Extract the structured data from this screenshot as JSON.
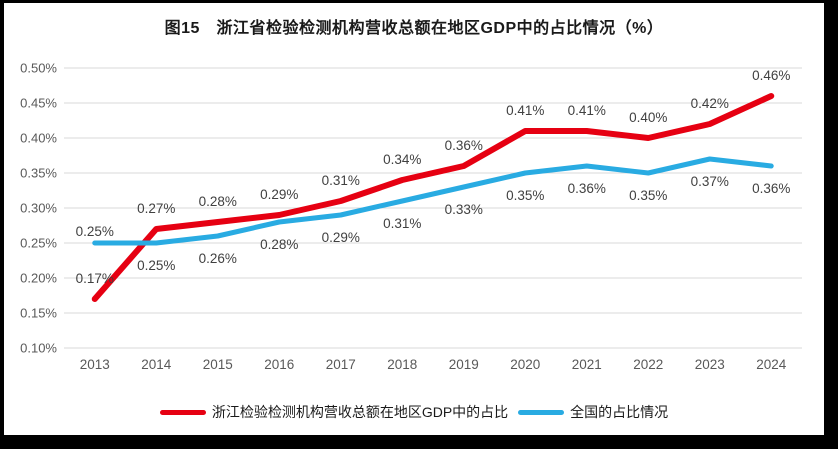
{
  "frame": {
    "border_color": "#000000",
    "background": "#ffffff"
  },
  "chart_data": {
    "type": "line",
    "title": "图15　浙江省检验检测机构营收总额在地区GDP中的占比情况（%）",
    "categories": [
      "2013",
      "2014",
      "2015",
      "2016",
      "2017",
      "2018",
      "2019",
      "2020",
      "2021",
      "2022",
      "2023",
      "2024"
    ],
    "series": [
      {
        "name": "浙江检验检测机构营收总额在地区GDP中的占比",
        "color": "#e60012",
        "stroke_width": 6,
        "label_position": "above",
        "values": [
          0.17,
          0.27,
          0.28,
          0.29,
          0.31,
          0.34,
          0.36,
          0.41,
          0.41,
          0.4,
          0.42,
          0.46
        ],
        "labels": [
          "0.17%",
          "0.27%",
          "0.28%",
          "0.29%",
          "0.31%",
          "0.34%",
          "0.36%",
          "0.41%",
          "0.41%",
          "0.40%",
          "0.42%",
          "0.46%"
        ]
      },
      {
        "name": "全国的占比情况",
        "color": "#29abe2",
        "stroke_width": 5,
        "label_position": "below",
        "label_position_overrides": {
          "0": "above"
        },
        "values": [
          0.25,
          0.25,
          0.26,
          0.28,
          0.29,
          0.31,
          0.33,
          0.35,
          0.36,
          0.35,
          0.37,
          0.36
        ],
        "labels": [
          "0.25%",
          "0.25%",
          "0.26%",
          "0.28%",
          "0.29%",
          "0.31%",
          "0.33%",
          "0.35%",
          "0.36%",
          "0.35%",
          "0.37%",
          "0.36%"
        ]
      }
    ],
    "xlabel": "",
    "ylabel": "",
    "y_axis": {
      "min": 0.1,
      "max": 0.5,
      "step": 0.05,
      "tick_labels": [
        "0.10%",
        "0.15%",
        "0.20%",
        "0.25%",
        "0.30%",
        "0.35%",
        "0.40%",
        "0.45%",
        "0.50%"
      ]
    },
    "grid": true,
    "gridline_color": "#d9d9d9",
    "axis_text_color": "#595959",
    "data_label_color": "#404040",
    "legend_position": "bottom"
  }
}
